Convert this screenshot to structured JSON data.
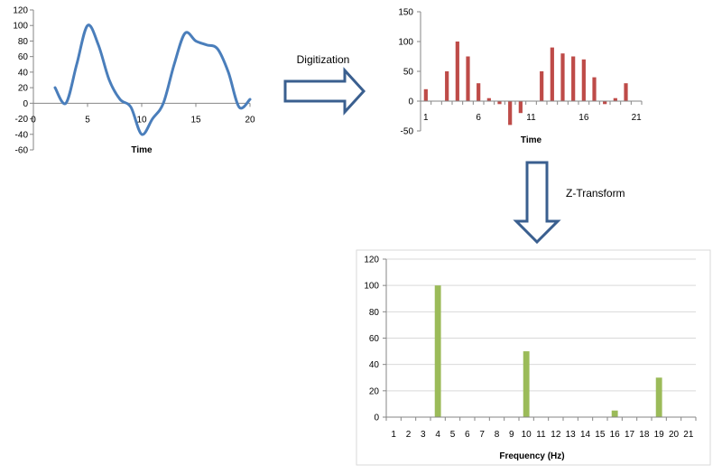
{
  "labels": {
    "digitization": "Digitization",
    "z_transform": "Z-Transform"
  },
  "colors": {
    "curve": "#4a7ebb",
    "bars": "#be4b48",
    "freq_bars": "#9bbb59",
    "axis": "#868686",
    "arrow_stroke": "#3a5f8f"
  },
  "chart_data": [
    {
      "type": "line",
      "xlabel": "Time",
      "ylabel": "",
      "xlim": [
        0,
        20
      ],
      "ylim": [
        -60,
        120
      ],
      "xticks": [
        "0",
        "5",
        "10",
        "15",
        "20"
      ],
      "yticks": [
        "-60",
        "-40",
        "-20",
        "0",
        "20",
        "40",
        "60",
        "80",
        "100",
        "120"
      ],
      "grid": false,
      "series": [
        {
          "x": [
            2,
            3,
            4,
            5,
            6,
            7,
            8,
            9,
            10,
            11,
            12,
            13,
            14,
            15,
            16,
            17,
            18,
            19,
            20
          ],
          "y": [
            20,
            0,
            50,
            100,
            75,
            30,
            5,
            -5,
            -40,
            -20,
            0,
            50,
            90,
            80,
            75,
            70,
            40,
            -5,
            5
          ]
        }
      ]
    },
    {
      "type": "bar",
      "xlabel": "Time",
      "ylabel": "",
      "ylim": [
        -50,
        150
      ],
      "yticks": [
        "-50",
        "0",
        "50",
        "100",
        "150"
      ],
      "xticks": [
        "1",
        "6",
        "11",
        "16",
        "21"
      ],
      "grid": false,
      "categories": [
        1,
        2,
        3,
        4,
        5,
        6,
        7,
        8,
        9,
        10,
        11,
        12,
        13,
        14,
        15,
        16,
        17,
        18,
        19,
        20,
        21
      ],
      "values": [
        20,
        0,
        50,
        100,
        75,
        30,
        5,
        -5,
        -40,
        -20,
        0,
        50,
        90,
        80,
        75,
        70,
        40,
        -5,
        5,
        30,
        0
      ]
    },
    {
      "type": "bar",
      "xlabel": "Frequency (Hz)",
      "ylabel": "",
      "ylim": [
        0,
        120
      ],
      "yticks": [
        "0",
        "20",
        "40",
        "60",
        "80",
        "100",
        "120"
      ],
      "grid": true,
      "categories": [
        "1",
        "2",
        "3",
        "4",
        "5",
        "6",
        "7",
        "8",
        "9",
        "10",
        "11",
        "12",
        "13",
        "14",
        "15",
        "16",
        "17",
        "18",
        "19",
        "20",
        "21"
      ],
      "values": [
        0,
        0,
        0,
        100,
        0,
        0,
        0,
        0,
        0,
        50,
        0,
        0,
        0,
        0,
        0,
        5,
        0,
        0,
        30,
        0,
        0
      ]
    }
  ]
}
